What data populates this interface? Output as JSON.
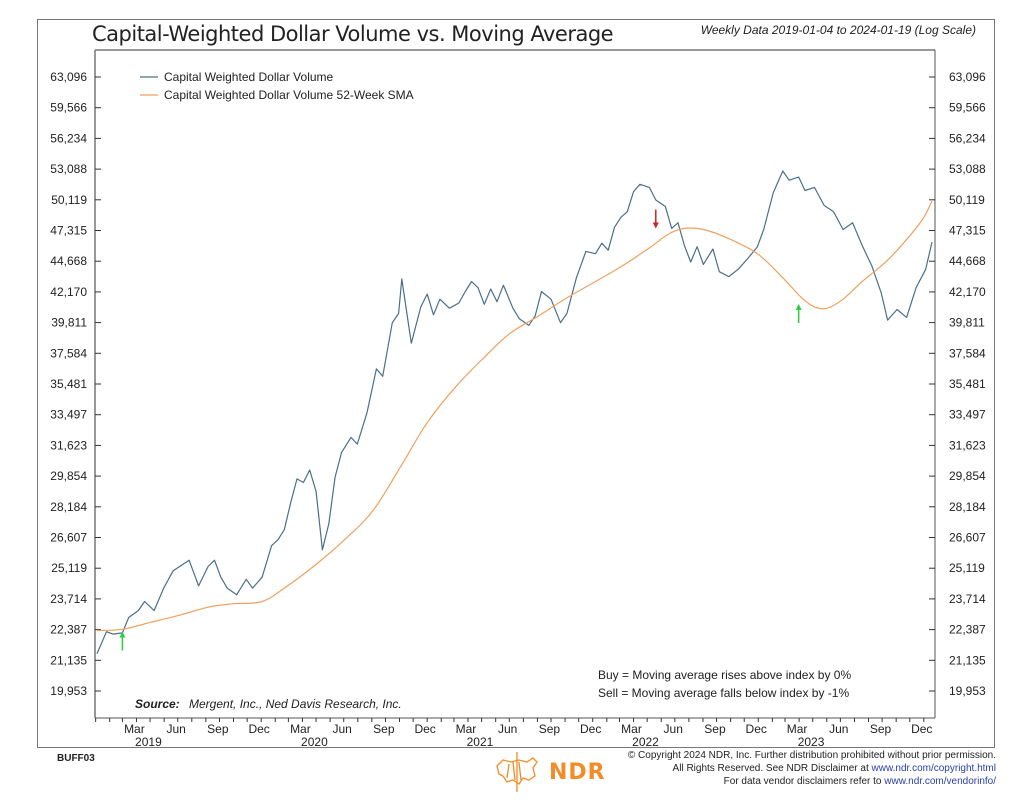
{
  "header": {
    "title": "Capital-Weighted Dollar Volume vs. Moving Average",
    "subtitle": "Weekly Data 2019-01-04 to 2024-01-19 (Log Scale)"
  },
  "footer": {
    "chart_code": "BUFF03",
    "logo_text": "NDR",
    "copyright_line1": "© Copyright 2024 NDR, Inc. Further distribution prohibited without prior permission.",
    "copyright_line2_prefix": "All Rights Reserved. See NDR Disclaimer at ",
    "copyright_line2_link": "www.ndr.com/copyright.html",
    "copyright_line3_prefix": "For data vendor disclaimers refer to ",
    "copyright_line3_link": "www.ndr.com/vendorinfo/"
  },
  "chart_data": {
    "type": "line",
    "title": "Capital-Weighted Dollar Volume vs. Moving Average",
    "subtitle": "Weekly Data 2019-01-04 to 2024-01-19 (Log Scale)",
    "scale": "log",
    "x_range": [
      "2019-01-04",
      "2024-01-19"
    ],
    "ylim": [
      19300,
      64500
    ],
    "y_ticks": [
      63096,
      59566,
      56234,
      53088,
      50119,
      47315,
      44668,
      42170,
      39811,
      37584,
      35481,
      33497,
      31623,
      29854,
      28184,
      26607,
      25119,
      23714,
      22387,
      21135,
      19953
    ],
    "y_tick_labels": [
      "63,096",
      "59,566",
      "56,234",
      "53,088",
      "50,119",
      "47,315",
      "44,668",
      "42,170",
      "39,811",
      "37,584",
      "35,481",
      "33,497",
      "31,623",
      "29,854",
      "28,184",
      "26,607",
      "25,119",
      "23,714",
      "22,387",
      "21,135",
      "19,953"
    ],
    "x_ticks": [
      {
        "date": "2019-03-01",
        "label": "Mar",
        "year": "2019"
      },
      {
        "date": "2019-06-01",
        "label": "Jun"
      },
      {
        "date": "2019-09-01",
        "label": "Sep"
      },
      {
        "date": "2019-12-01",
        "label": "Dec"
      },
      {
        "date": "2020-03-01",
        "label": "Mar",
        "year": "2020"
      },
      {
        "date": "2020-06-01",
        "label": "Jun"
      },
      {
        "date": "2020-09-01",
        "label": "Sep"
      },
      {
        "date": "2020-12-01",
        "label": "Dec"
      },
      {
        "date": "2021-03-01",
        "label": "Mar",
        "year": "2021"
      },
      {
        "date": "2021-06-01",
        "label": "Jun"
      },
      {
        "date": "2021-09-01",
        "label": "Sep"
      },
      {
        "date": "2021-12-01",
        "label": "Dec"
      },
      {
        "date": "2022-03-01",
        "label": "Mar",
        "year": "2022"
      },
      {
        "date": "2022-06-01",
        "label": "Jun"
      },
      {
        "date": "2022-09-01",
        "label": "Sep"
      },
      {
        "date": "2022-12-01",
        "label": "Dec"
      },
      {
        "date": "2023-03-01",
        "label": "Mar",
        "year": "2023"
      },
      {
        "date": "2023-06-01",
        "label": "Jun"
      },
      {
        "date": "2023-09-01",
        "label": "Sep"
      },
      {
        "date": "2023-12-01",
        "label": "Dec"
      }
    ],
    "grid": false,
    "legend_position": "top-left",
    "series": [
      {
        "name": "Capital Weighted Dollar Volume",
        "color": "#4a6f8a",
        "points": [
          [
            "2019-01-04",
            21400
          ],
          [
            "2019-01-25",
            22300
          ],
          [
            "2019-02-08",
            22200
          ],
          [
            "2019-03-01",
            22250
          ],
          [
            "2019-03-15",
            22900
          ],
          [
            "2019-04-05",
            23200
          ],
          [
            "2019-04-19",
            23600
          ],
          [
            "2019-05-10",
            23200
          ],
          [
            "2019-05-31",
            24200
          ],
          [
            "2019-06-21",
            25000
          ],
          [
            "2019-07-26",
            25500
          ],
          [
            "2019-08-16",
            24300
          ],
          [
            "2019-09-06",
            25200
          ],
          [
            "2019-09-20",
            25500
          ],
          [
            "2019-10-04",
            24700
          ],
          [
            "2019-10-18",
            24200
          ],
          [
            "2019-11-08",
            23900
          ],
          [
            "2019-11-29",
            24600
          ],
          [
            "2019-12-13",
            24200
          ],
          [
            "2020-01-03",
            24700
          ],
          [
            "2020-01-24",
            26200
          ],
          [
            "2020-02-07",
            26500
          ],
          [
            "2020-02-21",
            27000
          ],
          [
            "2020-03-06",
            28400
          ],
          [
            "2020-03-20",
            29700
          ],
          [
            "2020-04-03",
            29500
          ],
          [
            "2020-04-17",
            30200
          ],
          [
            "2020-05-01",
            29000
          ],
          [
            "2020-05-15",
            26000
          ],
          [
            "2020-05-29",
            27300
          ],
          [
            "2020-06-12",
            29800
          ],
          [
            "2020-06-26",
            31200
          ],
          [
            "2020-07-17",
            32100
          ],
          [
            "2020-07-31",
            31700
          ],
          [
            "2020-08-21",
            33600
          ],
          [
            "2020-09-11",
            36500
          ],
          [
            "2020-09-25",
            36000
          ],
          [
            "2020-10-16",
            39800
          ],
          [
            "2020-10-30",
            40500
          ],
          [
            "2020-11-06",
            43200
          ],
          [
            "2020-11-27",
            38300
          ],
          [
            "2020-12-18",
            41000
          ],
          [
            "2021-01-01",
            42000
          ],
          [
            "2021-01-15",
            40400
          ],
          [
            "2021-01-29",
            41600
          ],
          [
            "2021-02-19",
            40900
          ],
          [
            "2021-03-12",
            41300
          ],
          [
            "2021-03-26",
            42200
          ],
          [
            "2021-04-09",
            43000
          ],
          [
            "2021-04-23",
            42500
          ],
          [
            "2021-05-07",
            41200
          ],
          [
            "2021-05-21",
            42400
          ],
          [
            "2021-06-04",
            41400
          ],
          [
            "2021-06-18",
            42700
          ],
          [
            "2021-07-09",
            40900
          ],
          [
            "2021-07-23",
            40100
          ],
          [
            "2021-08-13",
            39600
          ],
          [
            "2021-08-27",
            40300
          ],
          [
            "2021-09-10",
            42200
          ],
          [
            "2021-10-01",
            41600
          ],
          [
            "2021-10-22",
            39800
          ],
          [
            "2021-11-05",
            40500
          ],
          [
            "2021-11-26",
            43300
          ],
          [
            "2021-12-17",
            45500
          ],
          [
            "2022-01-07",
            45300
          ],
          [
            "2022-01-21",
            46200
          ],
          [
            "2022-02-04",
            45600
          ],
          [
            "2022-02-18",
            47600
          ],
          [
            "2022-03-04",
            48500
          ],
          [
            "2022-03-18",
            49000
          ],
          [
            "2022-04-01",
            50900
          ],
          [
            "2022-04-15",
            51600
          ],
          [
            "2022-05-06",
            51300
          ],
          [
            "2022-05-20",
            50100
          ],
          [
            "2022-06-10",
            49500
          ],
          [
            "2022-06-24",
            47500
          ],
          [
            "2022-07-08",
            48000
          ],
          [
            "2022-07-22",
            46000
          ],
          [
            "2022-08-05",
            44600
          ],
          [
            "2022-08-19",
            45900
          ],
          [
            "2022-09-02",
            44400
          ],
          [
            "2022-09-23",
            45700
          ],
          [
            "2022-10-07",
            43800
          ],
          [
            "2022-10-28",
            43400
          ],
          [
            "2022-11-18",
            44000
          ],
          [
            "2022-12-09",
            44900
          ],
          [
            "2022-12-30",
            45900
          ],
          [
            "2023-01-13",
            47400
          ],
          [
            "2023-02-03",
            50800
          ],
          [
            "2023-02-24",
            52900
          ],
          [
            "2023-03-10",
            52000
          ],
          [
            "2023-03-31",
            52300
          ],
          [
            "2023-04-14",
            51000
          ],
          [
            "2023-05-05",
            51300
          ],
          [
            "2023-05-26",
            49600
          ],
          [
            "2023-06-16",
            49000
          ],
          [
            "2023-07-07",
            47400
          ],
          [
            "2023-07-28",
            48000
          ],
          [
            "2023-08-18",
            46000
          ],
          [
            "2023-09-08",
            44300
          ],
          [
            "2023-09-29",
            42100
          ],
          [
            "2023-10-13",
            40000
          ],
          [
            "2023-11-03",
            40800
          ],
          [
            "2023-11-24",
            40200
          ],
          [
            "2023-12-15",
            42500
          ],
          [
            "2024-01-05",
            44000
          ],
          [
            "2024-01-19",
            46300
          ]
        ]
      },
      {
        "name": "Capital Weighted Dollar Volume 52-Week SMA",
        "color": "#f0a060",
        "points": [
          [
            "2019-01-04",
            22350
          ],
          [
            "2019-03-01",
            22400
          ],
          [
            "2019-05-03",
            22700
          ],
          [
            "2019-07-05",
            23000
          ],
          [
            "2019-09-06",
            23350
          ],
          [
            "2019-11-01",
            23500
          ],
          [
            "2020-01-03",
            23600
          ],
          [
            "2020-02-28",
            24300
          ],
          [
            "2020-05-01",
            25300
          ],
          [
            "2020-07-03",
            26500
          ],
          [
            "2020-09-04",
            28000
          ],
          [
            "2020-11-06",
            30500
          ],
          [
            "2021-01-01",
            33000
          ],
          [
            "2021-03-05",
            35300
          ],
          [
            "2021-05-07",
            37300
          ],
          [
            "2021-07-02",
            39000
          ],
          [
            "2021-09-03",
            40300
          ],
          [
            "2021-11-05",
            41700
          ],
          [
            "2022-01-07",
            43000
          ],
          [
            "2022-03-04",
            44200
          ],
          [
            "2022-05-06",
            45800
          ],
          [
            "2022-06-17",
            47000
          ],
          [
            "2022-07-22",
            47500
          ],
          [
            "2022-09-02",
            47400
          ],
          [
            "2022-10-28",
            46600
          ],
          [
            "2022-12-30",
            45300
          ],
          [
            "2023-02-24",
            43300
          ],
          [
            "2023-04-07",
            41700
          ],
          [
            "2023-05-05",
            41000
          ],
          [
            "2023-06-02",
            40900
          ],
          [
            "2023-07-07",
            41600
          ],
          [
            "2023-08-18",
            43000
          ],
          [
            "2023-10-06",
            44500
          ],
          [
            "2023-11-17",
            46200
          ],
          [
            "2023-12-29",
            48300
          ],
          [
            "2024-01-19",
            50000
          ]
        ]
      }
    ],
    "signals": [
      {
        "type": "buy",
        "date": "2019-03-01",
        "value": 22350,
        "color": "#2ecc40"
      },
      {
        "type": "sell",
        "date": "2022-05-20",
        "value": 47400,
        "color": "#d62020"
      },
      {
        "type": "buy",
        "date": "2023-03-31",
        "value": 41300,
        "color": "#2ecc40"
      }
    ],
    "annotations": {
      "buy_rule": "Buy = Moving average rises above index by 0%",
      "sell_rule": "Sell = Moving average falls below index by -1%",
      "source_label": "Source:",
      "source_text": "Mergent, Inc., Ned Davis Research, Inc."
    }
  }
}
